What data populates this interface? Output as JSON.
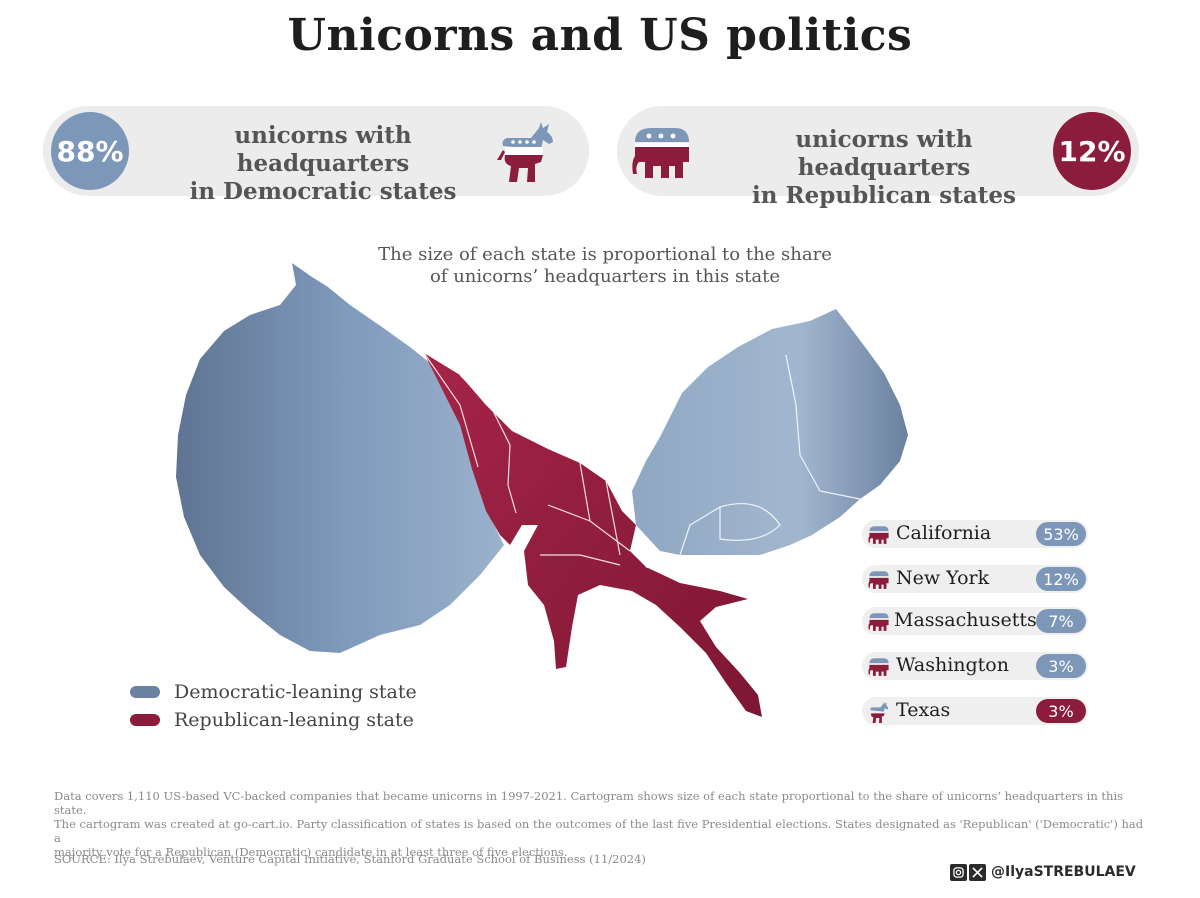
{
  "title": "Unicorns and US politics",
  "dem_stat": {
    "percent": "88%",
    "text_line1": "unicorns with headquarters",
    "text_line2": "in Democratic states"
  },
  "rep_stat": {
    "percent": "12%",
    "text_line1": "unicorns with headquarters",
    "text_line2": "in Republican states"
  },
  "subtitle_line1": "The size of each state is proportional to the share",
  "subtitle_line2": "of unicorns’ headquarters in this state",
  "legend": [
    {
      "label": "Democratic-leaning state",
      "color": "#6b82a3"
    },
    {
      "label": "Republican-leaning state",
      "color": "#8b1c3b"
    }
  ],
  "ranking": [
    {
      "state": "California",
      "value": "53%",
      "party": "democratic",
      "icon": "elephant-icon"
    },
    {
      "state": "New York",
      "value": "12%",
      "party": "democratic",
      "icon": "elephant-icon"
    },
    {
      "state": "Massachusetts",
      "value": "7%",
      "party": "democratic",
      "icon": "elephant-icon"
    },
    {
      "state": "Washington",
      "value": "3%",
      "party": "democratic",
      "icon": "elephant-icon"
    },
    {
      "state": "Texas",
      "value": "3%",
      "party": "republican",
      "icon": "donkey-icon"
    }
  ],
  "colors": {
    "democratic": "#7d97b9",
    "republican": "#8b1c3b",
    "pill_bg": "#ececec"
  },
  "footnote_line1": "Data covers 1,110 US-based VC-backed companies that became unicorns in 1997-2021. Cartogram shows size of each state proportional to the share of unicorns’ headquarters in this state.",
  "footnote_line2": "The cartogram was created at go-cart.io. Party classification of states is based on the outcomes of the last five Presidential elections. States designated as 'Republican' ('Democratic') had a",
  "footnote_line3": "majority vote for a Republican (Democratic) candidate in at least three of five elections.",
  "source": "SOURCE: Ilya Strebulaev, Venture Capital Initiative, Stanford Graduate School of Business (11/2024)",
  "social_handle": "@IlyaSTREBULAEV",
  "social_icons": [
    "instagram-icon",
    "x-icon"
  ]
}
